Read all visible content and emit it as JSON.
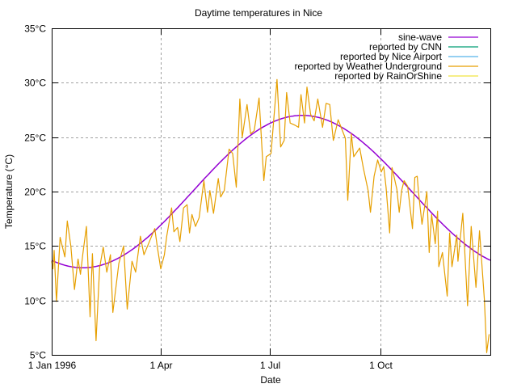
{
  "chart_data": {
    "type": "line",
    "title": "Daytime temperatures in Nice",
    "xlabel": "Date",
    "ylabel": "Temperature (°C)",
    "xlim": [
      "1996-01-01",
      "1997-01-01"
    ],
    "ylim": [
      5,
      35
    ],
    "x_ticks": [
      {
        "date": "1996-01-01",
        "label": "1 Jan 1996"
      },
      {
        "date": "1996-04-01",
        "label": "1 Apr"
      },
      {
        "date": "1996-07-01",
        "label": "1 Jul"
      },
      {
        "date": "1996-10-01",
        "label": "1 Oct"
      }
    ],
    "y_ticks": [
      {
        "value": 5,
        "label": "5°C"
      },
      {
        "value": 10,
        "label": "10°C"
      },
      {
        "value": 15,
        "label": "15°C"
      },
      {
        "value": 20,
        "label": "20°C"
      },
      {
        "value": 25,
        "label": "25°C"
      },
      {
        "value": 30,
        "label": "30°C"
      },
      {
        "value": 35,
        "label": "35°C"
      }
    ],
    "grid": true,
    "legend_position": "top-right",
    "series": [
      {
        "name": "sine-wave",
        "color": "#9400d3",
        "kind": "function",
        "mean": 20,
        "amplitude": 7,
        "peak_date": "1996-07-28",
        "period_days": 366
      },
      {
        "name": "reported by CNN",
        "color": "#009e73",
        "points": []
      },
      {
        "name": "reported by Nice Airport",
        "color": "#56b4e9",
        "points": []
      },
      {
        "name": "reported by Weather Underground",
        "color": "#e69f00",
        "points": [
          [
            "1996-01-01",
            13.6
          ],
          [
            "1996-01-02",
            12.9
          ],
          [
            "1996-01-03",
            14.6
          ],
          [
            "1996-01-05",
            9.9
          ],
          [
            "1996-01-08",
            15.8
          ],
          [
            "1996-01-12",
            14.0
          ],
          [
            "1996-01-14",
            17.3
          ],
          [
            "1996-01-17",
            15.0
          ],
          [
            "1996-01-20",
            11.0
          ],
          [
            "1996-01-23",
            13.8
          ],
          [
            "1996-01-25",
            12.4
          ],
          [
            "1996-01-27",
            14.3
          ],
          [
            "1996-01-30",
            16.8
          ],
          [
            "1996-02-02",
            8.5
          ],
          [
            "1996-02-04",
            14.3
          ],
          [
            "1996-02-07",
            6.3
          ],
          [
            "1996-02-10",
            13.0
          ],
          [
            "1996-02-13",
            14.9
          ],
          [
            "1996-02-16",
            12.6
          ],
          [
            "1996-02-19",
            14.2
          ],
          [
            "1996-02-21",
            8.9
          ],
          [
            "1996-02-26",
            13.4
          ],
          [
            "1996-03-01",
            15.0
          ],
          [
            "1996-03-04",
            9.2
          ],
          [
            "1996-03-08",
            13.6
          ],
          [
            "1996-03-11",
            12.6
          ],
          [
            "1996-03-15",
            15.9
          ],
          [
            "1996-03-18",
            14.2
          ],
          [
            "1996-03-21",
            15.0
          ],
          [
            "1996-03-27",
            16.6
          ],
          [
            "1996-03-29",
            15.0
          ],
          [
            "1996-04-01",
            12.9
          ],
          [
            "1996-04-04",
            14.2
          ],
          [
            "1996-04-06",
            15.9
          ],
          [
            "1996-04-10",
            18.5
          ],
          [
            "1996-04-12",
            16.3
          ],
          [
            "1996-04-15",
            16.7
          ],
          [
            "1996-04-17",
            15.4
          ],
          [
            "1996-04-20",
            18.5
          ],
          [
            "1996-04-23",
            18.8
          ],
          [
            "1996-04-25",
            16.2
          ],
          [
            "1996-04-27",
            17.9
          ],
          [
            "1996-04-30",
            16.8
          ],
          [
            "1996-05-03",
            17.6
          ],
          [
            "1996-05-07",
            21.0
          ],
          [
            "1996-05-10",
            18.1
          ],
          [
            "1996-05-12",
            20.1
          ],
          [
            "1996-05-15",
            18.0
          ],
          [
            "1996-05-19",
            21.2
          ],
          [
            "1996-05-21",
            19.5
          ],
          [
            "1996-05-24",
            20.1
          ],
          [
            "1996-05-28",
            23.9
          ],
          [
            "1996-05-31",
            23.5
          ],
          [
            "1996-06-03",
            20.4
          ],
          [
            "1996-06-06",
            28.5
          ],
          [
            "1996-06-08",
            25.0
          ],
          [
            "1996-06-12",
            28.0
          ],
          [
            "1996-06-15",
            25.3
          ],
          [
            "1996-06-18",
            25.6
          ],
          [
            "1996-06-22",
            28.6
          ],
          [
            "1996-06-26",
            21.0
          ],
          [
            "1996-06-28",
            23.2
          ],
          [
            "1996-07-02",
            23.5
          ],
          [
            "1996-07-07",
            30.3
          ],
          [
            "1996-07-10",
            24.1
          ],
          [
            "1996-07-13",
            24.7
          ],
          [
            "1996-07-15",
            29.1
          ],
          [
            "1996-07-18",
            26.3
          ],
          [
            "1996-07-22",
            26.1
          ],
          [
            "1996-07-25",
            25.9
          ],
          [
            "1996-07-27",
            28.9
          ],
          [
            "1996-07-30",
            26.3
          ],
          [
            "1996-08-01",
            29.6
          ],
          [
            "1996-08-04",
            27.1
          ],
          [
            "1996-08-07",
            26.5
          ],
          [
            "1996-08-10",
            28.5
          ],
          [
            "1996-08-14",
            25.9
          ],
          [
            "1996-08-17",
            28.1
          ],
          [
            "1996-08-20",
            28.0
          ],
          [
            "1996-08-23",
            24.7
          ],
          [
            "1996-08-27",
            26.6
          ],
          [
            "1996-09-02",
            24.9
          ],
          [
            "1996-09-04",
            19.2
          ],
          [
            "1996-09-07",
            25.3
          ],
          [
            "1996-09-09",
            23.2
          ],
          [
            "1996-09-14",
            24.0
          ],
          [
            "1996-09-17",
            22.2
          ],
          [
            "1996-09-21",
            20.1
          ],
          [
            "1996-09-23",
            18.1
          ],
          [
            "1996-09-26",
            21.4
          ],
          [
            "1996-09-29",
            22.9
          ],
          [
            "1996-10-02",
            21.8
          ],
          [
            "1996-10-04",
            22.3
          ],
          [
            "1996-10-06",
            20.4
          ],
          [
            "1996-10-09",
            16.2
          ],
          [
            "1996-10-11",
            22.2
          ],
          [
            "1996-10-15",
            20.2
          ],
          [
            "1996-10-17",
            18.1
          ],
          [
            "1996-10-19",
            20.1
          ],
          [
            "1996-10-21",
            21.0
          ],
          [
            "1996-10-24",
            20.5
          ],
          [
            "1996-10-28",
            16.6
          ],
          [
            "1996-10-30",
            21.3
          ],
          [
            "1996-11-01",
            21.4
          ],
          [
            "1996-11-02",
            20.0
          ],
          [
            "1996-11-05",
            17.0
          ],
          [
            "1996-11-09",
            20.0
          ],
          [
            "1996-11-11",
            14.4
          ],
          [
            "1996-11-13",
            17.9
          ],
          [
            "1996-11-16",
            15.2
          ],
          [
            "1996-11-18",
            18.2
          ],
          [
            "1996-11-19",
            13.1
          ],
          [
            "1996-11-22",
            14.4
          ],
          [
            "1996-11-26",
            10.4
          ],
          [
            "1996-11-28",
            16.2
          ],
          [
            "1996-11-30",
            13.1
          ],
          [
            "1996-12-04",
            16.0
          ],
          [
            "1996-12-05",
            13.6
          ],
          [
            "1996-12-09",
            18.0
          ],
          [
            "1996-12-13",
            9.5
          ],
          [
            "1996-12-16",
            16.8
          ],
          [
            "1996-12-20",
            11.2
          ],
          [
            "1996-12-23",
            16.4
          ],
          [
            "1996-12-27",
            10.1
          ],
          [
            "1996-12-29",
            5.2
          ],
          [
            "1996-12-31",
            6.9
          ]
        ]
      },
      {
        "name": "reported by RainOrShine",
        "color": "#f0e442",
        "points": []
      }
    ]
  }
}
